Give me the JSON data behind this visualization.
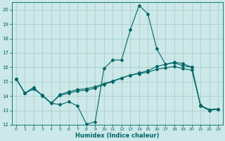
{
  "xlabel": "Humidex (Indice chaleur)",
  "bg_color": "#cce8e8",
  "grid_color": "#aacccc",
  "line_color": "#006666",
  "xlim": [
    -0.5,
    23.5
  ],
  "ylim": [
    12,
    20.5
  ],
  "xticks": [
    0,
    1,
    2,
    3,
    4,
    5,
    6,
    7,
    8,
    9,
    10,
    11,
    12,
    13,
    14,
    15,
    16,
    17,
    18,
    19,
    20,
    21,
    22,
    23
  ],
  "yticks": [
    12,
    13,
    14,
    15,
    16,
    17,
    18,
    19,
    20
  ],
  "line1_x": [
    0,
    1,
    2,
    3,
    4,
    5,
    6,
    7,
    8,
    9,
    10,
    11,
    12,
    13,
    14,
    15,
    16,
    17,
    18,
    19,
    20,
    21,
    22,
    23
  ],
  "line1_y": [
    15.2,
    14.2,
    14.6,
    14.0,
    13.5,
    13.4,
    13.6,
    13.3,
    12.05,
    12.2,
    15.9,
    16.5,
    16.5,
    18.6,
    20.3,
    19.7,
    17.3,
    16.2,
    16.3,
    16.1,
    16.0,
    13.3,
    13.0,
    13.1
  ],
  "line2_x": [
    0,
    1,
    2,
    3,
    4,
    5,
    6,
    7,
    8,
    9,
    10,
    11,
    12,
    13,
    14,
    15,
    16,
    17,
    18,
    19,
    20,
    21,
    22,
    23
  ],
  "line2_y": [
    15.2,
    14.2,
    14.5,
    14.05,
    13.5,
    14.05,
    14.2,
    14.35,
    14.4,
    14.55,
    14.8,
    15.0,
    15.25,
    15.45,
    15.6,
    15.75,
    16.05,
    16.2,
    16.35,
    16.25,
    16.0,
    13.3,
    13.05,
    13.1
  ],
  "line3_x": [
    0,
    1,
    2,
    3,
    4,
    5,
    6,
    7,
    8,
    9,
    10,
    11,
    12,
    13,
    14,
    15,
    16,
    17,
    18,
    19,
    20,
    21,
    22,
    23
  ],
  "line3_y": [
    15.2,
    14.2,
    14.5,
    14.05,
    13.5,
    14.1,
    14.3,
    14.45,
    14.5,
    14.65,
    14.85,
    15.05,
    15.25,
    15.45,
    15.55,
    15.65,
    15.85,
    15.95,
    16.05,
    15.9,
    15.8,
    13.35,
    13.05,
    13.1
  ]
}
